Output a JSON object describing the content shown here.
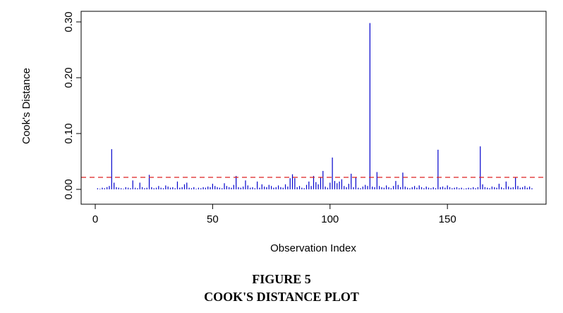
{
  "caption": {
    "figure_number": "FIGURE 5",
    "figure_title": "COOK'S DISTANCE PLOT"
  },
  "chart_data": {
    "type": "bar",
    "style": "spike",
    "xlabel": "Observation Index",
    "ylabel": "Cook's Distance",
    "xlim": [
      0,
      186
    ],
    "ylim": [
      0,
      0.3
    ],
    "x_ticks": [
      0,
      50,
      100,
      150
    ],
    "y_ticks": [
      0.0,
      0.1,
      0.2,
      0.3
    ],
    "x_tick_labels": [
      "0",
      "50",
      "100",
      "150"
    ],
    "y_tick_labels": [
      "0.00",
      "0.10",
      "0.20",
      "0.30"
    ],
    "spike_color": "#0000cc",
    "threshold": {
      "value": 0.0215,
      "color": "#dd2222",
      "style": "dashed"
    },
    "grid": false,
    "x": [
      1,
      2,
      3,
      4,
      5,
      6,
      7,
      8,
      9,
      10,
      11,
      12,
      13,
      14,
      15,
      16,
      17,
      18,
      19,
      20,
      21,
      22,
      23,
      24,
      25,
      26,
      27,
      28,
      29,
      30,
      31,
      32,
      33,
      34,
      35,
      36,
      37,
      38,
      39,
      40,
      41,
      42,
      43,
      44,
      45,
      46,
      47,
      48,
      49,
      50,
      51,
      52,
      53,
      54,
      55,
      56,
      57,
      58,
      59,
      60,
      61,
      62,
      63,
      64,
      65,
      66,
      67,
      68,
      69,
      70,
      71,
      72,
      73,
      74,
      75,
      76,
      77,
      78,
      79,
      80,
      81,
      82,
      83,
      84,
      85,
      86,
      87,
      88,
      89,
      90,
      91,
      92,
      93,
      94,
      95,
      96,
      97,
      98,
      99,
      100,
      101,
      102,
      103,
      104,
      105,
      106,
      107,
      108,
      109,
      110,
      111,
      112,
      113,
      114,
      115,
      116,
      117,
      118,
      119,
      120,
      121,
      122,
      123,
      124,
      125,
      126,
      127,
      128,
      129,
      130,
      131,
      132,
      133,
      134,
      135,
      136,
      137,
      138,
      139,
      140,
      141,
      142,
      143,
      144,
      145,
      146,
      147,
      148,
      149,
      150,
      151,
      152,
      153,
      154,
      155,
      156,
      157,
      158,
      159,
      160,
      161,
      162,
      163,
      164,
      165,
      166,
      167,
      168,
      169,
      170,
      171,
      172,
      173,
      174,
      175,
      176,
      177,
      178,
      179,
      180,
      181,
      182,
      183,
      184,
      185,
      186
    ],
    "values": [
      0.002,
      0.001,
      0.003,
      0.002,
      0.004,
      0.006,
      0.072,
      0.012,
      0.004,
      0.003,
      0.002,
      0.001,
      0.004,
      0.003,
      0.002,
      0.016,
      0.003,
      0.002,
      0.012,
      0.004,
      0.002,
      0.003,
      0.026,
      0.004,
      0.002,
      0.003,
      0.006,
      0.003,
      0.002,
      0.007,
      0.005,
      0.003,
      0.004,
      0.002,
      0.014,
      0.003,
      0.004,
      0.009,
      0.012,
      0.003,
      0.002,
      0.004,
      0.001,
      0.003,
      0.002,
      0.004,
      0.003,
      0.005,
      0.004,
      0.01,
      0.006,
      0.004,
      0.003,
      0.002,
      0.011,
      0.006,
      0.004,
      0.003,
      0.008,
      0.024,
      0.004,
      0.003,
      0.005,
      0.016,
      0.007,
      0.003,
      0.004,
      0.002,
      0.014,
      0.003,
      0.009,
      0.005,
      0.004,
      0.008,
      0.006,
      0.003,
      0.004,
      0.007,
      0.004,
      0.003,
      0.009,
      0.005,
      0.02,
      0.027,
      0.02,
      0.004,
      0.006,
      0.003,
      0.002,
      0.008,
      0.014,
      0.006,
      0.024,
      0.013,
      0.009,
      0.022,
      0.033,
      0.005,
      0.003,
      0.012,
      0.057,
      0.015,
      0.011,
      0.014,
      0.018,
      0.006,
      0.004,
      0.01,
      0.028,
      0.004,
      0.022,
      0.003,
      0.002,
      0.005,
      0.008,
      0.006,
      0.298,
      0.005,
      0.004,
      0.031,
      0.006,
      0.004,
      0.003,
      0.007,
      0.004,
      0.002,
      0.006,
      0.015,
      0.008,
      0.004,
      0.03,
      0.005,
      0.003,
      0.002,
      0.004,
      0.006,
      0.003,
      0.007,
      0.004,
      0.002,
      0.005,
      0.003,
      0.002,
      0.004,
      0.002,
      0.071,
      0.004,
      0.005,
      0.003,
      0.007,
      0.004,
      0.002,
      0.003,
      0.004,
      0.002,
      0.003,
      0.001,
      0.002,
      0.003,
      0.002,
      0.004,
      0.002,
      0.004,
      0.077,
      0.009,
      0.004,
      0.003,
      0.002,
      0.005,
      0.004,
      0.003,
      0.01,
      0.004,
      0.002,
      0.014,
      0.005,
      0.003,
      0.004,
      0.022,
      0.006,
      0.003,
      0.004,
      0.006,
      0.003,
      0.005,
      0.002
    ]
  }
}
